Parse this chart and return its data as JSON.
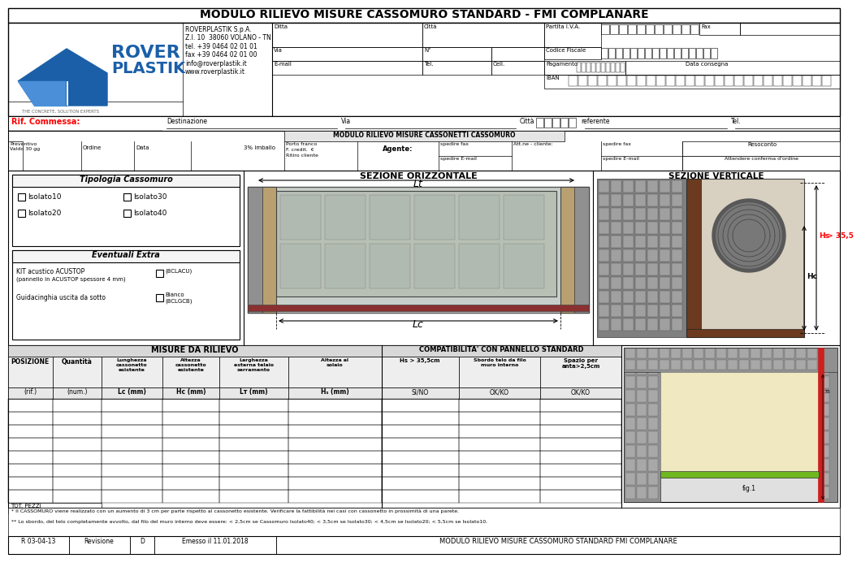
{
  "title": "MODULO RILIEVO MISURE CASSOMURO STANDARD - FMI COMPLANARE",
  "company_info": "ROVERPLASTIK S.p.A.\nZ.I. 10  38060 VOLANO - TN\ntel. +39 0464 02 01 01\nfax +39 0464 02 01 00\ninfo@roverplastik.it\nwww.roverplastik.it",
  "tagline": "THE CONCRETE, SOLUTION EXPERTS",
  "rif_commessa": "Rif. Commessa:",
  "destinazione": "Destinazione",
  "via_label": "Via",
  "citta_label": "Città",
  "referente_label": "referente",
  "tel_label": "Tel.",
  "n_label": "N°",
  "email_label": "E-mail",
  "tel2_label": "Tel.",
  "cell_label": "Cell.",
  "partita_label": "Partita I.V.A.",
  "fax_label": "Fax",
  "codice_label": "Codice Fiscale",
  "pagamento_label": "Pagamento",
  "data_consegna_label": "Data consegna",
  "iban_label": "IBAN",
  "ditta_label": "Ditta",
  "citta2_label": "Città",
  "section_title": "MODULO RILIEVO MISURE CASSONETTI CASSOMURO",
  "preventivo": "Preventivo\nValdo 30 gg",
  "ordine": "Ordine",
  "data_col": "Data",
  "imballo": "3% imballo",
  "porto_franco": "Porto franco",
  "fcredit": "F. credit.  €",
  "ritiro": "Ritiro cliente",
  "agente": "Agente:",
  "spedire_fax1": "spedire fax",
  "spedire_email1": "spedire E-mail",
  "attne": "Att.ne - cliente:",
  "spedire_fax2": "spedire fax",
  "spedire_email2": "spedire E-mail",
  "resoconto": "Resoconto",
  "attendere": "Attendere conferma d'ordine",
  "tipologia_title": "Tipologia Cassomuro",
  "eventuali_title": "Eventuali Extra",
  "kit_acustico_line1": "KIT acustico ACUSTOP",
  "kit_acustico_line2": "(pannello in ACUSTOP spessore 4 mm)",
  "kit_code": "(8CLACU)",
  "guidacinghia": "Guidacinghia uscita da sotto",
  "bianco": "Bianco\n(8CLGCB)",
  "sezione_orizz": "SEZIONE ORIZZONTALE",
  "lt_label": "Lt",
  "lc_label": "Lc",
  "sezione_vert": "SEZIONE VERTICALE",
  "hs_label": "Hs",
  "hs_val": "> 35,5",
  "hc_label": "Hc",
  "misure_title": "MISURE DA RILIEVO",
  "compat_title": "COMPATIBILITA' CON PANNELLO STANDARD",
  "pos_label": "POSIZIONE",
  "qty_label": "Quantità",
  "lc_col_hdr": "Lunghezza\ncassonetto\nesistente",
  "lc_star": "*",
  "hc_col_hdr": "Altezza\ncassonetto\nesistente",
  "lt_col_hdr": "Larghezza\nesterna telaio\nserramento",
  "hs_col_hdr": "Altezza al\nsolaio",
  "hs_compat": "Hs > 35,5cm",
  "sbordo_col": "Sbordo telo da filo\nmuro interno",
  "sbordo_star": "**",
  "spazio_col": "Spazio per\nanta>2,5cm",
  "rif_label": "(rif.)",
  "num_label": "(num.)",
  "lc_mm": "Lc (mm)",
  "hc_mm": "Hc (mm)",
  "lt_mm": "Lᴛ (mm)",
  "hs_mm": "Hₛ (mm)",
  "sino": "SI/NO",
  "okko1": "OK/KO",
  "okko2": "OK/KO",
  "tot_pezzi": "TOT. PEZZI",
  "footnote1": "* Il CASSOMURO viene realizzato con un aumento di 3 cm per parte rispetto al cassonetto esistente. Verificare la fattibilità nei casi con cassonetto in prossimità di una parete.",
  "footnote2": "** Lo sbordo, del telo completamente avvolto, dal filo del muro interno deve essere: < 2,5cm se Cassomuro Isolato40; < 3,5cm se Isolato30; < 4,5cm se Isolato20; < 5,5cm se Isolato10.",
  "footer_rev": "R 03-04-13",
  "footer_rev_label": "Revisione",
  "footer_rev_val": "D",
  "footer_emesso": "Emesso il 11.01.2018",
  "footer_title": "MODULO RILIEVO MISURE CASSOMURO STANDARD FMI COMPLANARE",
  "fig1": "fig.1",
  "bg_color": "#ffffff",
  "blue_color": "#1a5fa8",
  "blue_light": "#4a8fd8",
  "rover_blue": "#1055a0"
}
